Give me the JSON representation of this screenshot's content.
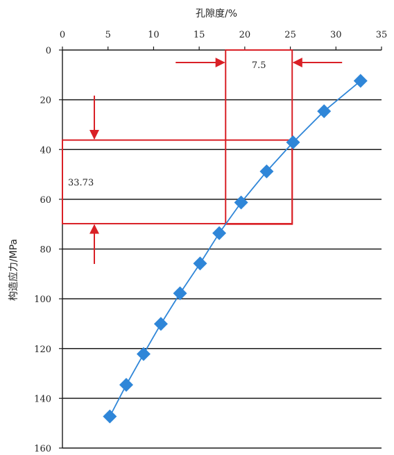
{
  "chart_data": {
    "type": "scatter",
    "x_axis": {
      "label": "孔隙度/%",
      "position": "top",
      "range": [
        0,
        35
      ],
      "ticks": [
        0,
        5,
        10,
        15,
        20,
        25,
        30,
        35
      ]
    },
    "y_axis": {
      "label": "构造应力/MPa",
      "range": [
        0,
        160
      ],
      "inverted": true,
      "ticks": [
        0,
        20,
        40,
        60,
        80,
        100,
        120,
        140,
        160
      ]
    },
    "grid": "horizontal",
    "series": [
      {
        "color": "#2f86d8",
        "marker": "diamond",
        "line": true,
        "points": [
          {
            "x": 5.2,
            "y": 147.3
          },
          {
            "x": 7.0,
            "y": 134.6
          },
          {
            "x": 8.9,
            "y": 122.2
          },
          {
            "x": 10.8,
            "y": 110.1
          },
          {
            "x": 12.9,
            "y": 97.8
          },
          {
            "x": 15.1,
            "y": 85.8
          },
          {
            "x": 17.2,
            "y": 73.6
          },
          {
            "x": 19.6,
            "y": 61.3
          },
          {
            "x": 22.4,
            "y": 48.8
          },
          {
            "x": 25.3,
            "y": 37.1
          },
          {
            "x": 28.7,
            "y": 24.6
          },
          {
            "x": 32.7,
            "y": 12.4
          }
        ]
      }
    ],
    "annotations": [
      {
        "type": "vertical-band",
        "x_from": 17.9,
        "x_to": 25.2,
        "y_from": 0,
        "y_to": 70,
        "label": "7.5",
        "color": "#d92026"
      },
      {
        "type": "horizontal-band",
        "y_from": 36.2,
        "y_to": 69.8,
        "x_from": 0,
        "x_to": 25.2,
        "label": "33.73",
        "color": "#d92026"
      }
    ]
  }
}
